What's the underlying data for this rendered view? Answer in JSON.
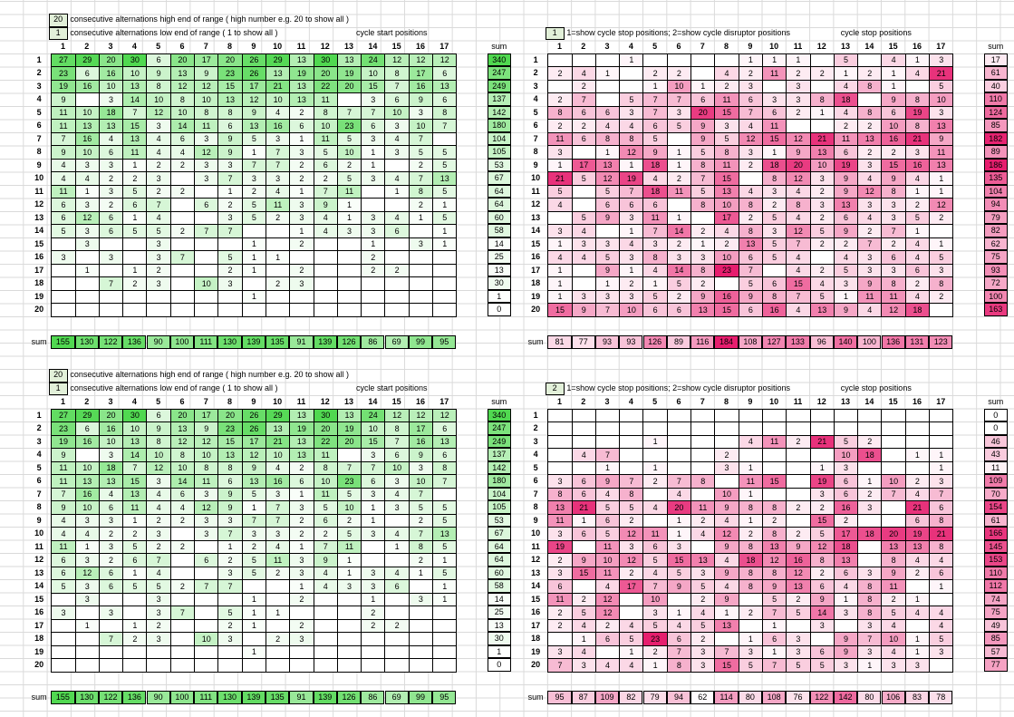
{
  "labels": {
    "high_end": "consecutive alternations high end of range ( high number e.g. 20 to show all )",
    "low_end": "consecutive alternations low end of range ( 1 to show all )",
    "cycle_start": "cycle start positions",
    "cycle_stop": "cycle stop positions",
    "show_mode": "1=show cycle stop positions; 2=show cycle disruptor positions",
    "sum": "sum"
  },
  "top_left": {
    "high": "20",
    "low": "1"
  },
  "top_right": {
    "mode": "1"
  },
  "bottom_left": {
    "high": "20",
    "low": "1"
  },
  "bottom_right": {
    "mode": "2"
  },
  "col_headers": [
    "1",
    "2",
    "3",
    "4",
    "5",
    "6",
    "7",
    "8",
    "9",
    "10",
    "11",
    "12",
    "13",
    "14",
    "15",
    "16",
    "17"
  ],
  "row_headers": [
    "1",
    "2",
    "3",
    "4",
    "5",
    "6",
    "7",
    "8",
    "9",
    "10",
    "11",
    "12",
    "13",
    "14",
    "15",
    "16",
    "17",
    "18",
    "19",
    "20"
  ],
  "green": {
    "rows": [
      [
        "27",
        "29",
        "20",
        "30",
        "6",
        "20",
        "17",
        "20",
        "26",
        "29",
        "13",
        "30",
        "13",
        "24",
        "12",
        "12",
        "12"
      ],
      [
        "23",
        "6",
        "16",
        "10",
        "9",
        "13",
        "9",
        "23",
        "26",
        "13",
        "19",
        "20",
        "19",
        "10",
        "8",
        "17",
        "6"
      ],
      [
        "19",
        "16",
        "10",
        "13",
        "8",
        "12",
        "12",
        "15",
        "17",
        "21",
        "13",
        "22",
        "20",
        "15",
        "7",
        "16",
        "13"
      ],
      [
        "9",
        "",
        "3",
        "14",
        "10",
        "8",
        "10",
        "13",
        "12",
        "10",
        "13",
        "11",
        "",
        "3",
        "6",
        "9",
        "6"
      ],
      [
        "11",
        "10",
        "18",
        "7",
        "12",
        "10",
        "8",
        "8",
        "9",
        "4",
        "2",
        "8",
        "7",
        "7",
        "10",
        "3",
        "8"
      ],
      [
        "11",
        "13",
        "13",
        "15",
        "3",
        "14",
        "11",
        "6",
        "13",
        "16",
        "6",
        "10",
        "23",
        "6",
        "3",
        "10",
        "7"
      ],
      [
        "7",
        "16",
        "4",
        "13",
        "4",
        "6",
        "3",
        "9",
        "5",
        "3",
        "1",
        "11",
        "5",
        "3",
        "4",
        "7",
        ""
      ],
      [
        "9",
        "10",
        "6",
        "11",
        "4",
        "4",
        "12",
        "9",
        "1",
        "7",
        "3",
        "5",
        "10",
        "1",
        "3",
        "5",
        "5"
      ],
      [
        "4",
        "3",
        "3",
        "1",
        "2",
        "2",
        "3",
        "3",
        "7",
        "7",
        "2",
        "6",
        "2",
        "1",
        "",
        "2",
        "5"
      ],
      [
        "4",
        "4",
        "2",
        "2",
        "3",
        "",
        "3",
        "7",
        "3",
        "3",
        "2",
        "2",
        "5",
        "3",
        "4",
        "7",
        "13"
      ],
      [
        "11",
        "1",
        "3",
        "5",
        "2",
        "2",
        "",
        "1",
        "2",
        "4",
        "1",
        "7",
        "11",
        "",
        "1",
        "8",
        "5"
      ],
      [
        "6",
        "3",
        "2",
        "6",
        "7",
        "",
        "6",
        "2",
        "5",
        "11",
        "3",
        "9",
        "1",
        "",
        "",
        "2",
        "1"
      ],
      [
        "6",
        "12",
        "6",
        "1",
        "4",
        "",
        "",
        "3",
        "5",
        "2",
        "3",
        "4",
        "1",
        "3",
        "4",
        "1",
        "5"
      ],
      [
        "5",
        "3",
        "6",
        "5",
        "5",
        "2",
        "7",
        "7",
        "",
        "",
        "1",
        "4",
        "3",
        "3",
        "6",
        "",
        "1"
      ],
      [
        "",
        "3",
        "",
        "",
        "3",
        "",
        "",
        "",
        "1",
        "",
        "2",
        "",
        "",
        "1",
        "",
        "3",
        "1"
      ],
      [
        "3",
        "",
        "3",
        "",
        "3",
        "7",
        "",
        "5",
        "1",
        "1",
        "",
        "",
        "",
        "2",
        "",
        "",
        ""
      ],
      [
        "",
        "1",
        "",
        "1",
        "2",
        "",
        "",
        "2",
        "1",
        "",
        "2",
        "",
        "",
        "2",
        "2",
        "",
        ""
      ],
      [
        "",
        "",
        "7",
        "2",
        "3",
        "",
        "10",
        "3",
        "",
        "2",
        "3",
        "",
        "",
        "",
        "",
        "",
        ""
      ],
      [
        "",
        "",
        "",
        "",
        "",
        "",
        "",
        "",
        "1",
        "",
        "",
        "",
        "",
        "",
        "",
        "",
        ""
      ],
      [
        "",
        "",
        "",
        "",
        "",
        "",
        "",
        "",
        "",
        "",
        "",
        "",
        "",
        "",
        "",
        "",
        ""
      ]
    ],
    "sums": [
      "340",
      "247",
      "249",
      "137",
      "142",
      "180",
      "104",
      "105",
      "53",
      "67",
      "64",
      "64",
      "60",
      "58",
      "14",
      "25",
      "13",
      "30",
      "1",
      "0"
    ],
    "col_sums": [
      "155",
      "130",
      "122",
      "136",
      "90",
      "100",
      "111",
      "130",
      "139",
      "135",
      "91",
      "139",
      "126",
      "86",
      "69",
      "99",
      "95"
    ]
  },
  "red_top": {
    "rows": [
      [
        "",
        "",
        "",
        "1",
        "",
        "",
        "",
        "",
        "1",
        "1",
        "1",
        "",
        "5",
        "",
        "4",
        "1",
        "3"
      ],
      [
        "2",
        "4",
        "1",
        "",
        "2",
        "2",
        "",
        "4",
        "2",
        "11",
        "2",
        "2",
        "1",
        "2",
        "1",
        "4",
        "21"
      ],
      [
        "",
        "2",
        "",
        "",
        "1",
        "10",
        "1",
        "2",
        "3",
        "",
        "3",
        "",
        "4",
        "8",
        "1",
        "",
        "5"
      ],
      [
        "2",
        "7",
        "",
        "5",
        "7",
        "7",
        "6",
        "11",
        "6",
        "3",
        "3",
        "8",
        "18",
        "",
        "9",
        "8",
        "10"
      ],
      [
        "8",
        "6",
        "6",
        "3",
        "7",
        "3",
        "20",
        "15",
        "7",
        "6",
        "2",
        "1",
        "4",
        "8",
        "6",
        "19",
        "3"
      ],
      [
        "2",
        "2",
        "4",
        "4",
        "6",
        "5",
        "9",
        "3",
        "4",
        "11",
        "",
        "",
        "2",
        "2",
        "10",
        "8",
        "13"
      ],
      [
        "11",
        "6",
        "8",
        "8",
        "5",
        "",
        "9",
        "5",
        "12",
        "15",
        "12",
        "21",
        "11",
        "13",
        "16",
        "21",
        "9"
      ],
      [
        "3",
        "",
        "1",
        "12",
        "9",
        "1",
        "5",
        "8",
        "3",
        "1",
        "9",
        "13",
        "6",
        "2",
        "2",
        "3",
        "11"
      ],
      [
        "1",
        "17",
        "13",
        "1",
        "18",
        "1",
        "8",
        "11",
        "2",
        "18",
        "20",
        "10",
        "19",
        "3",
        "15",
        "16",
        "13"
      ],
      [
        "21",
        "5",
        "12",
        "19",
        "4",
        "2",
        "7",
        "15",
        "",
        "8",
        "12",
        "3",
        "9",
        "4",
        "9",
        "4",
        "1"
      ],
      [
        "5",
        "",
        "5",
        "7",
        "18",
        "11",
        "5",
        "13",
        "4",
        "3",
        "4",
        "2",
        "9",
        "12",
        "8",
        "1",
        "1"
      ],
      [
        "4",
        "",
        "6",
        "6",
        "6",
        "",
        "8",
        "10",
        "8",
        "2",
        "8",
        "3",
        "13",
        "3",
        "3",
        "2",
        "12"
      ],
      [
        "",
        "5",
        "9",
        "3",
        "11",
        "1",
        "",
        "17",
        "2",
        "5",
        "4",
        "2",
        "6",
        "4",
        "3",
        "5",
        "2"
      ],
      [
        "3",
        "4",
        "",
        "1",
        "7",
        "14",
        "2",
        "4",
        "8",
        "3",
        "12",
        "5",
        "9",
        "2",
        "7",
        "1",
        ""
      ],
      [
        "1",
        "3",
        "3",
        "4",
        "3",
        "2",
        "1",
        "2",
        "13",
        "5",
        "7",
        "2",
        "2",
        "7",
        "2",
        "4",
        "1"
      ],
      [
        "4",
        "4",
        "5",
        "3",
        "8",
        "3",
        "3",
        "10",
        "6",
        "5",
        "4",
        "",
        "4",
        "3",
        "6",
        "4",
        "5"
      ],
      [
        "1",
        "",
        "9",
        "1",
        "4",
        "14",
        "8",
        "23",
        "7",
        "",
        "4",
        "2",
        "5",
        "3",
        "3",
        "6",
        "3"
      ],
      [
        "1",
        "",
        "1",
        "2",
        "1",
        "5",
        "2",
        "",
        "5",
        "6",
        "15",
        "4",
        "3",
        "9",
        "8",
        "2",
        "8"
      ],
      [
        "1",
        "3",
        "3",
        "3",
        "5",
        "2",
        "9",
        "16",
        "9",
        "8",
        "7",
        "5",
        "1",
        "11",
        "11",
        "4",
        "2"
      ],
      [
        "15",
        "9",
        "7",
        "10",
        "6",
        "6",
        "13",
        "15",
        "6",
        "16",
        "4",
        "13",
        "9",
        "4",
        "12",
        "18",
        ""
      ]
    ],
    "sums": [
      "17",
      "61",
      "40",
      "110",
      "124",
      "85",
      "182",
      "89",
      "186",
      "135",
      "104",
      "94",
      "79",
      "82",
      "62",
      "75",
      "93",
      "72",
      "100",
      "163"
    ],
    "col_sums": [
      "81",
      "77",
      "93",
      "93",
      "126",
      "89",
      "116",
      "184",
      "108",
      "127",
      "133",
      "96",
      "140",
      "100",
      "136",
      "131",
      "123"
    ]
  },
  "red_bottom": {
    "rows": [
      [
        "",
        "",
        "",
        "",
        "",
        "",
        "",
        "",
        "",
        "",
        "",
        "",
        "",
        "",
        "",
        "",
        ""
      ],
      [
        "",
        "",
        "",
        "",
        "",
        "",
        "",
        "",
        "",
        "",
        "",
        "",
        "",
        "",
        "",
        "",
        ""
      ],
      [
        "",
        "",
        "",
        "",
        "1",
        "",
        "",
        "",
        "4",
        "11",
        "2",
        "21",
        "5",
        "2",
        "",
        "",
        ""
      ],
      [
        "",
        "4",
        "7",
        "",
        "",
        "",
        "",
        "2",
        "",
        "",
        "",
        "",
        "10",
        "18",
        "",
        "1",
        "1"
      ],
      [
        "",
        "",
        "1",
        "",
        "1",
        "",
        "",
        "3",
        "1",
        "",
        "",
        "1",
        "3",
        "",
        "",
        "",
        "1"
      ],
      [
        "3",
        "6",
        "9",
        "7",
        "2",
        "7",
        "8",
        "",
        "11",
        "15",
        "",
        "19",
        "6",
        "1",
        "10",
        "2",
        "3"
      ],
      [
        "8",
        "6",
        "4",
        "8",
        "",
        "4",
        "",
        "10",
        "1",
        "",
        "",
        "3",
        "6",
        "2",
        "7",
        "4",
        "7"
      ],
      [
        "13",
        "21",
        "5",
        "5",
        "4",
        "20",
        "11",
        "9",
        "8",
        "8",
        "2",
        "2",
        "16",
        "3",
        "",
        "21",
        "6"
      ],
      [
        "11",
        "1",
        "6",
        "2",
        "",
        "1",
        "2",
        "4",
        "1",
        "2",
        "",
        "15",
        "2",
        "",
        "",
        "6",
        "8"
      ],
      [
        "3",
        "6",
        "5",
        "12",
        "11",
        "1",
        "4",
        "12",
        "2",
        "8",
        "2",
        "5",
        "17",
        "18",
        "20",
        "19",
        "21"
      ],
      [
        "19",
        "",
        "11",
        "3",
        "6",
        "3",
        "",
        "9",
        "8",
        "13",
        "9",
        "12",
        "18",
        "",
        "13",
        "13",
        "8"
      ],
      [
        "2",
        "9",
        "10",
        "12",
        "5",
        "15",
        "13",
        "4",
        "18",
        "12",
        "16",
        "8",
        "13",
        "",
        "8",
        "4",
        "4"
      ],
      [
        "3",
        "15",
        "11",
        "2",
        "4",
        "5",
        "3",
        "9",
        "8",
        "8",
        "12",
        "2",
        "6",
        "3",
        "9",
        "2",
        "6"
      ],
      [
        "6",
        "",
        "4",
        "17",
        "7",
        "9",
        "5",
        "4",
        "8",
        "9",
        "13",
        "6",
        "4",
        "8",
        "11",
        "",
        "1"
      ],
      [
        "11",
        "2",
        "12",
        "",
        "10",
        "",
        "2",
        "9",
        "",
        "5",
        "2",
        "9",
        "1",
        "8",
        "2",
        "1",
        ""
      ],
      [
        "2",
        "5",
        "12",
        "",
        "3",
        "1",
        "4",
        "1",
        "2",
        "7",
        "5",
        "14",
        "3",
        "8",
        "5",
        "4",
        "4"
      ],
      [
        "2",
        "4",
        "2",
        "4",
        "5",
        "4",
        "5",
        "13",
        "",
        "1",
        "",
        "3",
        "",
        "3",
        "4",
        "",
        "4"
      ],
      [
        "",
        "1",
        "6",
        "5",
        "23",
        "6",
        "2",
        "",
        "1",
        "6",
        "3",
        "",
        "9",
        "7",
        "10",
        "1",
        "5"
      ],
      [
        "3",
        "4",
        "",
        "1",
        "2",
        "7",
        "3",
        "7",
        "3",
        "1",
        "3",
        "6",
        "9",
        "3",
        "4",
        "1",
        "3"
      ],
      [
        "7",
        "3",
        "4",
        "4",
        "1",
        "8",
        "3",
        "15",
        "5",
        "7",
        "5",
        "5",
        "3",
        "1",
        "3",
        "3",
        ""
      ]
    ],
    "sums": [
      "0",
      "0",
      "46",
      "43",
      "11",
      "109",
      "70",
      "154",
      "61",
      "166",
      "145",
      "153",
      "110",
      "112",
      "74",
      "75",
      "49",
      "85",
      "57",
      "77"
    ],
    "col_sums": [
      "95",
      "87",
      "109",
      "82",
      "79",
      "94",
      "62",
      "114",
      "80",
      "108",
      "76",
      "122",
      "142",
      "80",
      "106",
      "83",
      "78"
    ]
  }
}
